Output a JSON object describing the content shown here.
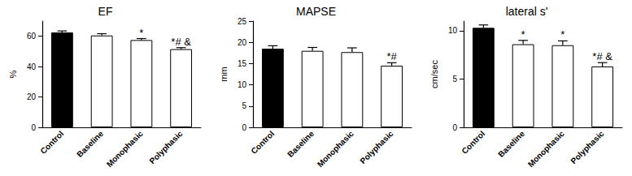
{
  "chart_data": [
    {
      "type": "bar",
      "title": "EF",
      "y_label": "%",
      "categories": [
        "Control",
        "Baseline",
        "Monophasic",
        "Polyphasic"
      ],
      "values": [
        62.5,
        60.5,
        57.5,
        51.5
      ],
      "errors": [
        1.0,
        1.2,
        1.0,
        1.0
      ],
      "colors": [
        "#000000",
        "#ffffff",
        "#ffffff",
        "#ffffff"
      ],
      "annotations": [
        null,
        null,
        "*",
        "*# &"
      ],
      "ylim": [
        0,
        70
      ],
      "yticks": [
        0,
        20,
        40,
        60
      ],
      "grid": false
    },
    {
      "type": "bar",
      "title": "MAPSE",
      "y_label": "mm",
      "categories": [
        "Control",
        "Baseline",
        "Monophasic",
        "Polyphasic"
      ],
      "values": [
        18.5,
        18.0,
        17.7,
        14.5
      ],
      "errors": [
        0.7,
        0.8,
        1.0,
        0.7
      ],
      "colors": [
        "#000000",
        "#ffffff",
        "#ffffff",
        "#ffffff"
      ],
      "annotations": [
        null,
        null,
        null,
        "*#"
      ],
      "ylim": [
        0,
        25
      ],
      "yticks": [
        0,
        5,
        10,
        15,
        20,
        25
      ],
      "grid": false
    },
    {
      "type": "bar",
      "title": "lateral s'",
      "y_label": "cm/sec",
      "categories": [
        "Control",
        "Baseline",
        "Monophasic",
        "Polyphasic"
      ],
      "values": [
        10.3,
        8.6,
        8.5,
        6.3
      ],
      "errors": [
        0.3,
        0.4,
        0.45,
        0.4
      ],
      "colors": [
        "#000000",
        "#ffffff",
        "#ffffff",
        "#ffffff"
      ],
      "annotations": [
        null,
        "*",
        "*",
        "*# &"
      ],
      "ylim": [
        0,
        11
      ],
      "yticks": [
        0,
        5,
        10
      ],
      "grid": false
    }
  ]
}
